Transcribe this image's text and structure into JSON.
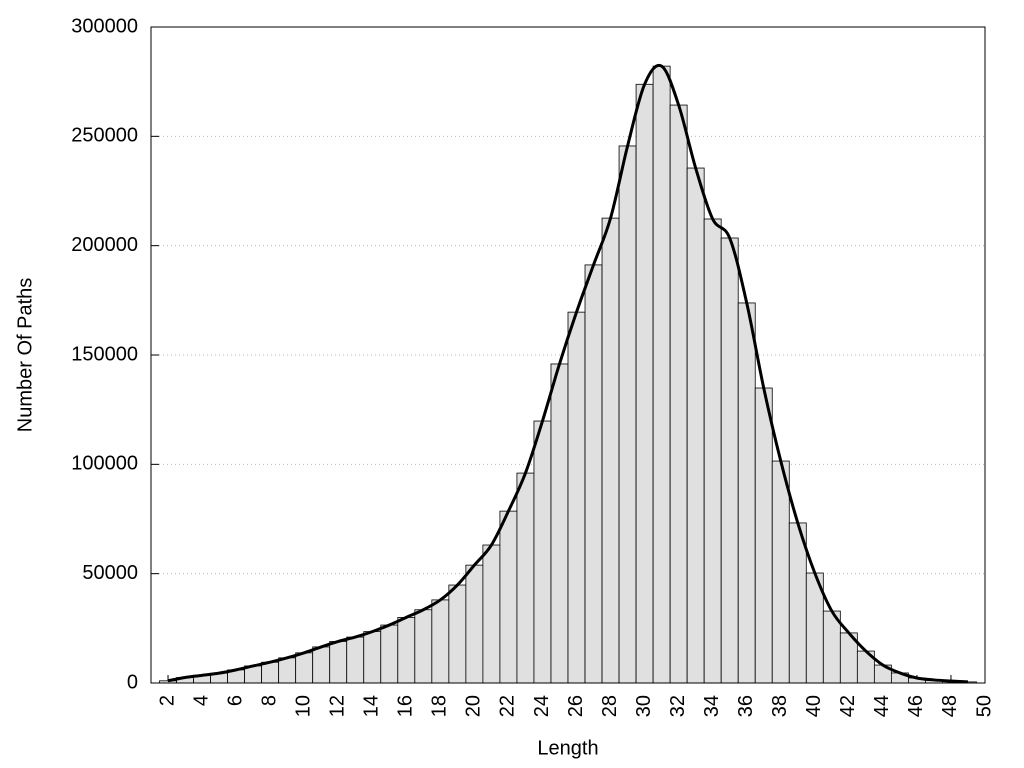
{
  "chart_data": {
    "type": "histogram",
    "xlabel": "Length",
    "ylabel": "Number Of Paths",
    "bins": [
      1.5,
      2.5,
      3.5,
      4.5,
      5.5,
      6.5,
      7.5,
      8.5,
      9.5,
      10.5,
      11.5,
      12.5,
      13.5,
      14.5,
      15.5,
      16.5,
      17.5,
      18.5,
      19.5,
      20.5,
      21.5,
      22.5,
      23.5,
      24.5,
      25.5,
      26.5,
      27.5,
      28.5,
      29.5,
      30.5,
      31.5,
      32.5,
      33.5,
      34.5,
      35.5,
      36.5,
      37.5,
      38.5,
      39.5,
      40.5,
      41.5,
      42.5,
      43.5,
      44.5,
      45.5,
      46.5,
      47.5,
      48.5,
      49.5
    ],
    "counts": [
      1000,
      2500,
      3500,
      4500,
      6000,
      7800,
      9500,
      11500,
      13800,
      16500,
      19000,
      21000,
      23500,
      26500,
      30000,
      33500,
      38000,
      44800,
      53900,
      63100,
      78600,
      96000,
      119800,
      145900,
      169600,
      191200,
      212600,
      245600,
      273800,
      282100,
      264300,
      235500,
      212200,
      203500,
      173800,
      134900,
      101500,
      73200,
      50300,
      32900,
      22900,
      14600,
      8200,
      4600,
      2300,
      1400,
      900,
      500
    ],
    "color": "#e0e0e0",
    "edgecolor": "#000000",
    "line": true,
    "line_color": "#000000",
    "xlim": [
      1,
      50
    ],
    "xticks": [
      2,
      4,
      6,
      8,
      10,
      12,
      14,
      16,
      18,
      20,
      22,
      24,
      26,
      28,
      30,
      32,
      34,
      36,
      38,
      40,
      42,
      44,
      46,
      48,
      50
    ],
    "ylim": [
      0,
      300000
    ],
    "yticks": [
      0,
      50000,
      100000,
      150000,
      200000,
      250000,
      300000
    ],
    "grid": true
  }
}
